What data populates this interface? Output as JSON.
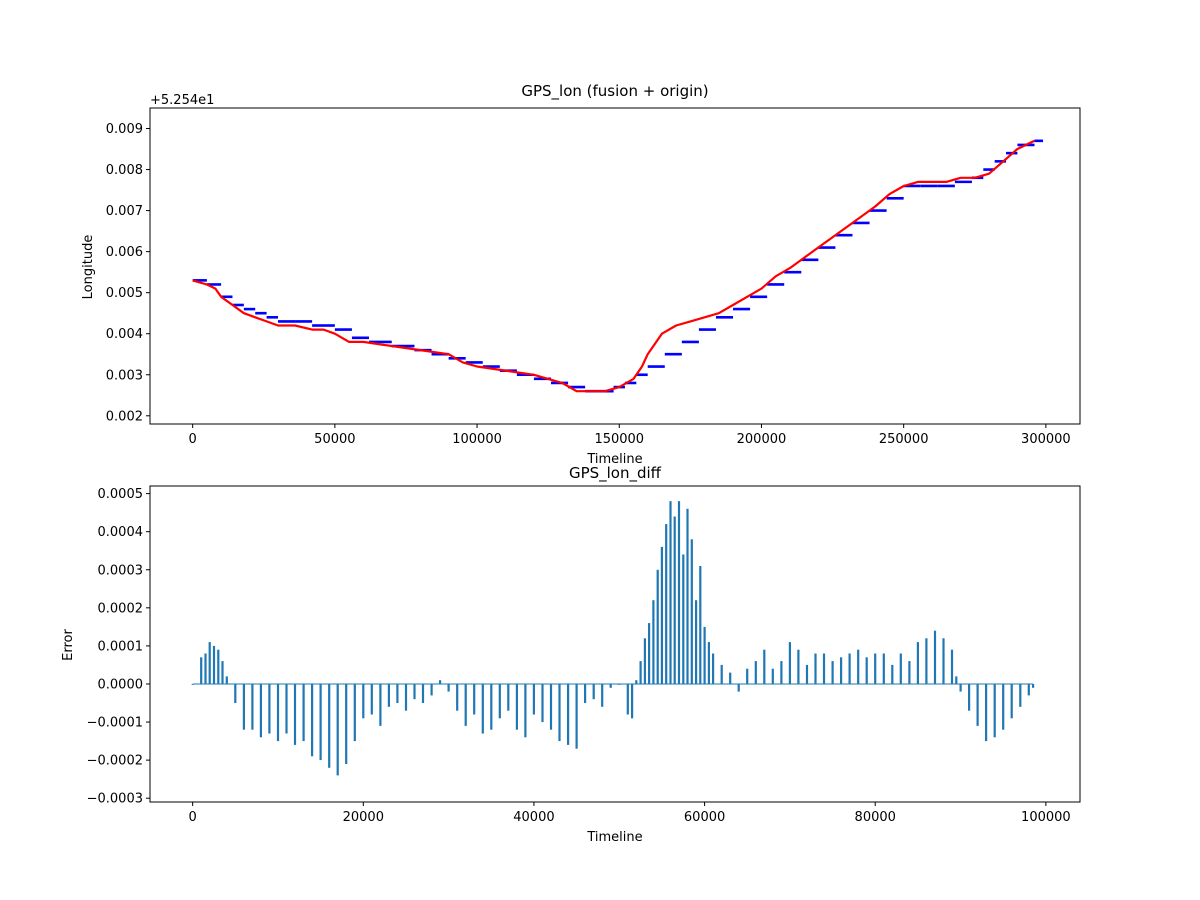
{
  "colors": {
    "fusion": "#ff0000",
    "origin": "#0000ff",
    "diff_bars": "#1f77b4"
  },
  "chart_data": [
    {
      "type": "line",
      "title": "GPS_lon (fusion + origin)",
      "xlabel": "Timeline",
      "ylabel": "Longitude",
      "offset_text": "+5.254e1",
      "xlim": [
        -15000,
        312000
      ],
      "ylim": [
        0.0018,
        0.0095
      ],
      "x_ticks": [
        0,
        50000,
        100000,
        150000,
        200000,
        250000,
        300000
      ],
      "x_tick_labels": [
        "0",
        "50000",
        "100000",
        "150000",
        "200000",
        "250000",
        "300000"
      ],
      "y_ticks": [
        0.002,
        0.003,
        0.004,
        0.005,
        0.006,
        0.007,
        0.008,
        0.009
      ],
      "y_tick_labels": [
        "0.002",
        "0.003",
        "0.004",
        "0.005",
        "0.006",
        "0.007",
        "0.008",
        "0.009"
      ],
      "grid": false,
      "series": [
        {
          "role": "origin",
          "color": "#0000ff",
          "style": "steps",
          "x": [
            0,
            5000,
            10000,
            14000,
            18000,
            22000,
            26000,
            30000,
            36000,
            42000,
            46000,
            50000,
            56000,
            62000,
            70000,
            78000,
            84000,
            90000,
            96000,
            102000,
            108000,
            114000,
            120000,
            126000,
            132000,
            138000,
            142000,
            148000,
            152000,
            156000,
            160000,
            166000,
            172000,
            178000,
            184000,
            190000,
            196000,
            202000,
            208000,
            214000,
            220000,
            226000,
            232000,
            238000,
            244000,
            250000,
            256000,
            262000,
            268000,
            274000,
            278000,
            282000,
            286000,
            290000,
            296000
          ],
          "y": [
            0.0053,
            0.0052,
            0.0049,
            0.0047,
            0.0046,
            0.0045,
            0.0044,
            0.0043,
            0.0043,
            0.0042,
            0.0042,
            0.0041,
            0.0039,
            0.0038,
            0.0037,
            0.0036,
            0.0035,
            0.0034,
            0.0033,
            0.0032,
            0.0031,
            0.003,
            0.0029,
            0.0028,
            0.0027,
            0.0026,
            0.0026,
            0.0027,
            0.0028,
            0.003,
            0.0032,
            0.0035,
            0.0038,
            0.0041,
            0.0044,
            0.0046,
            0.0049,
            0.0052,
            0.0055,
            0.0058,
            0.0061,
            0.0064,
            0.0067,
            0.007,
            0.0073,
            0.0076,
            0.0076,
            0.0076,
            0.0077,
            0.0078,
            0.008,
            0.0082,
            0.0084,
            0.0086,
            0.0087
          ]
        },
        {
          "role": "fusion",
          "color": "#ff0000",
          "style": "line",
          "x": [
            0,
            5000,
            8000,
            10000,
            14000,
            18000,
            22000,
            26000,
            30000,
            36000,
            42000,
            46000,
            50000,
            55000,
            60000,
            70000,
            80000,
            90000,
            95000,
            100000,
            110000,
            120000,
            125000,
            130000,
            135000,
            140000,
            145000,
            150000,
            155000,
            158000,
            160000,
            165000,
            170000,
            175000,
            180000,
            185000,
            190000,
            195000,
            200000,
            205000,
            210000,
            220000,
            230000,
            240000,
            245000,
            250000,
            255000,
            260000,
            265000,
            270000,
            275000,
            280000,
            285000,
            290000,
            296000
          ],
          "y": [
            0.0053,
            0.0052,
            0.0051,
            0.0049,
            0.0047,
            0.0045,
            0.0044,
            0.0043,
            0.0042,
            0.0042,
            0.0041,
            0.0041,
            0.004,
            0.0038,
            0.0038,
            0.0037,
            0.0036,
            0.0035,
            0.0033,
            0.0032,
            0.0031,
            0.003,
            0.0029,
            0.0028,
            0.0026,
            0.0026,
            0.0026,
            0.0027,
            0.0029,
            0.0032,
            0.0035,
            0.004,
            0.0042,
            0.0043,
            0.0044,
            0.0045,
            0.0047,
            0.0049,
            0.0051,
            0.0054,
            0.0056,
            0.0061,
            0.0066,
            0.0071,
            0.0074,
            0.0076,
            0.0077,
            0.0077,
            0.0077,
            0.0078,
            0.0078,
            0.0079,
            0.0082,
            0.0085,
            0.0087
          ]
        }
      ]
    },
    {
      "type": "bar",
      "title": "GPS_lon_diff",
      "xlabel": "Timeline",
      "ylabel": "Error",
      "xlim": [
        -5000,
        104000
      ],
      "ylim": [
        -0.00031,
        0.00052
      ],
      "x_ticks": [
        0,
        20000,
        40000,
        60000,
        80000,
        100000
      ],
      "x_tick_labels": [
        "0",
        "20000",
        "40000",
        "60000",
        "80000",
        "100000"
      ],
      "y_ticks": [
        -0.0003,
        -0.0002,
        -0.0001,
        0.0,
        0.0001,
        0.0002,
        0.0003,
        0.0004,
        0.0005
      ],
      "y_tick_labels": [
        "−0.0003",
        "−0.0002",
        "−0.0001",
        "0.0000",
        "0.0001",
        "0.0002",
        "0.0003",
        "0.0004",
        "0.0005"
      ],
      "grid": false,
      "bar_color": "#1f77b4",
      "x": [
        0,
        1000,
        1500,
        2000,
        2500,
        3000,
        3500,
        4000,
        5000,
        6000,
        7000,
        8000,
        9000,
        10000,
        11000,
        12000,
        13000,
        14000,
        15000,
        16000,
        17000,
        18000,
        19000,
        20000,
        21000,
        22000,
        23000,
        24000,
        25000,
        26000,
        27000,
        28000,
        29000,
        30000,
        31000,
        32000,
        33000,
        34000,
        35000,
        36000,
        37000,
        38000,
        39000,
        40000,
        41000,
        42000,
        43000,
        44000,
        45000,
        46000,
        47000,
        48000,
        49000,
        50000,
        51000,
        51500,
        52000,
        52500,
        53000,
        53500,
        54000,
        54500,
        55000,
        55500,
        56000,
        56500,
        57000,
        57500,
        58000,
        58500,
        59000,
        59500,
        60000,
        60500,
        61000,
        62000,
        63000,
        64000,
        65000,
        66000,
        67000,
        68000,
        69000,
        70000,
        71000,
        72000,
        73000,
        74000,
        75000,
        76000,
        77000,
        78000,
        79000,
        80000,
        81000,
        82000,
        83000,
        84000,
        85000,
        86000,
        87000,
        88000,
        89000,
        89500,
        90000,
        91000,
        92000,
        93000,
        94000,
        95000,
        96000,
        97000,
        98000,
        98500
      ],
      "values": [
        0.0,
        7e-05,
        8e-05,
        0.00011,
        0.0001,
        9e-05,
        6e-05,
        2e-05,
        -5e-05,
        -0.00012,
        -0.00012,
        -0.00014,
        -0.00013,
        -0.00015,
        -0.00013,
        -0.00016,
        -0.00015,
        -0.00019,
        -0.0002,
        -0.00022,
        -0.00024,
        -0.00021,
        -0.00015,
        -9e-05,
        -8e-05,
        -0.00011,
        -6e-05,
        -5e-05,
        -7e-05,
        -4e-05,
        -5e-05,
        -3e-05,
        1e-05,
        -2e-05,
        -7e-05,
        -0.00011,
        -8e-05,
        -0.00013,
        -0.00012,
        -9e-05,
        -7e-05,
        -0.00012,
        -0.00014,
        -8e-05,
        -0.0001,
        -0.00012,
        -0.00015,
        -0.00016,
        -0.00017,
        -5e-05,
        -4e-05,
        -6e-05,
        -1e-05,
        0.0,
        -8e-05,
        -9e-05,
        1e-05,
        6e-05,
        0.00012,
        0.00016,
        0.00022,
        0.0003,
        0.00036,
        0.00042,
        0.00048,
        0.00044,
        0.00048,
        0.00034,
        0.00046,
        0.00038,
        0.00022,
        0.00031,
        0.00015,
        0.00011,
        8e-05,
        5e-05,
        3e-05,
        -2e-05,
        4e-05,
        6e-05,
        9e-05,
        4e-05,
        6e-05,
        0.00011,
        9e-05,
        5e-05,
        8e-05,
        8e-05,
        6e-05,
        7e-05,
        8e-05,
        9e-05,
        7e-05,
        8e-05,
        8e-05,
        5e-05,
        8e-05,
        6e-05,
        0.00011,
        0.00012,
        0.00014,
        0.00012,
        9e-05,
        2e-05,
        -2e-05,
        -7e-05,
        -0.00011,
        -0.00015,
        -0.00014,
        -0.00012,
        -9e-05,
        -6e-05,
        -3e-05,
        -1e-05
      ]
    }
  ]
}
